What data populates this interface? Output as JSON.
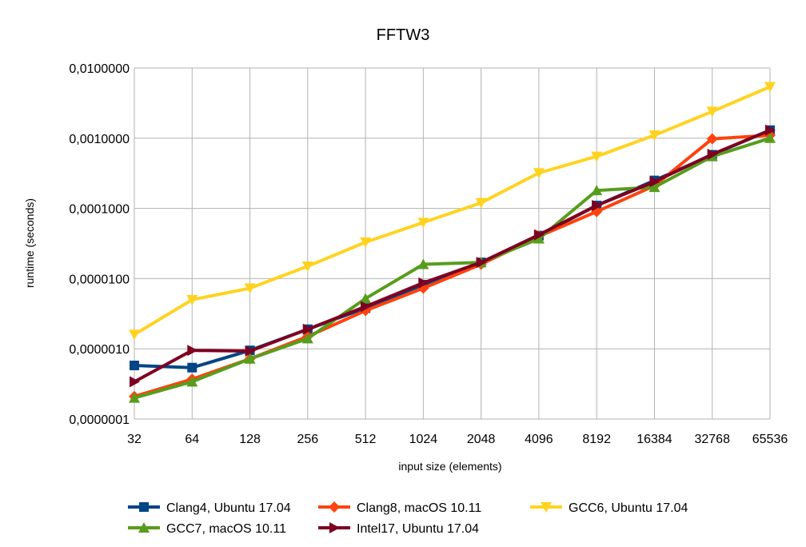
{
  "chart_data": {
    "type": "line",
    "title": "FFTW3",
    "xlabel": "input size (elements)",
    "ylabel": "runtime (seconds)",
    "y_scale": "log",
    "ylim": [
      1e-07,
      0.01
    ],
    "y_ticks": [
      {
        "value": 0.01,
        "label": "0,0100000"
      },
      {
        "value": 0.001,
        "label": "0,0010000"
      },
      {
        "value": 0.0001,
        "label": "0,0001000"
      },
      {
        "value": 1e-05,
        "label": "0,0000100"
      },
      {
        "value": 1e-06,
        "label": "0,0000010"
      },
      {
        "value": 1e-07,
        "label": "0,0000001"
      }
    ],
    "categories": [
      "32",
      "64",
      "128",
      "256",
      "512",
      "1024",
      "2048",
      "4096",
      "8192",
      "16384",
      "32768",
      "65536"
    ],
    "grid": true,
    "legend_position": "bottom",
    "series": [
      {
        "name": "Clang4, Ubuntu 17.04",
        "color": "#004586",
        "marker": "square",
        "values": [
          5.8e-07,
          5.4e-07,
          9.5e-07,
          1.9e-06,
          3.8e-06,
          8.2e-06,
          1.7e-05,
          4.1e-05,
          0.00011,
          0.00025,
          0.00058,
          0.0013
        ]
      },
      {
        "name": "Clang8, macOS 10.11",
        "color": "#ff420e",
        "marker": "diamond",
        "values": [
          2.1e-07,
          3.7e-07,
          7.2e-07,
          1.5e-06,
          3.5e-06,
          7.3e-06,
          1.6e-05,
          4e-05,
          9e-05,
          0.00021,
          0.00098,
          0.0011
        ]
      },
      {
        "name": "GCC6, Ubuntu 17.04",
        "color": "#ffd320",
        "marker": "triangle-down",
        "values": [
          1.6e-06,
          5e-06,
          7.3e-06,
          1.5e-05,
          3.3e-05,
          6.3e-05,
          0.00012,
          0.00032,
          0.00055,
          0.0011,
          0.0024,
          0.0054
        ]
      },
      {
        "name": "GCC7, macOS 10.11",
        "color": "#579d1c",
        "marker": "triangle-up",
        "values": [
          2e-07,
          3.4e-07,
          7.2e-07,
          1.4e-06,
          5.2e-06,
          1.6e-05,
          1.7e-05,
          3.7e-05,
          0.00018,
          0.0002,
          0.00055,
          0.001
        ]
      },
      {
        "name": "Intel17, Ubuntu 17.04",
        "color": "#7e0021",
        "marker": "triangle-right",
        "values": [
          3.4e-07,
          9.5e-07,
          9.3e-07,
          1.9e-06,
          4e-06,
          8.7e-06,
          1.7e-05,
          4.2e-05,
          0.00011,
          0.00024,
          0.00059,
          0.0013
        ]
      }
    ]
  }
}
